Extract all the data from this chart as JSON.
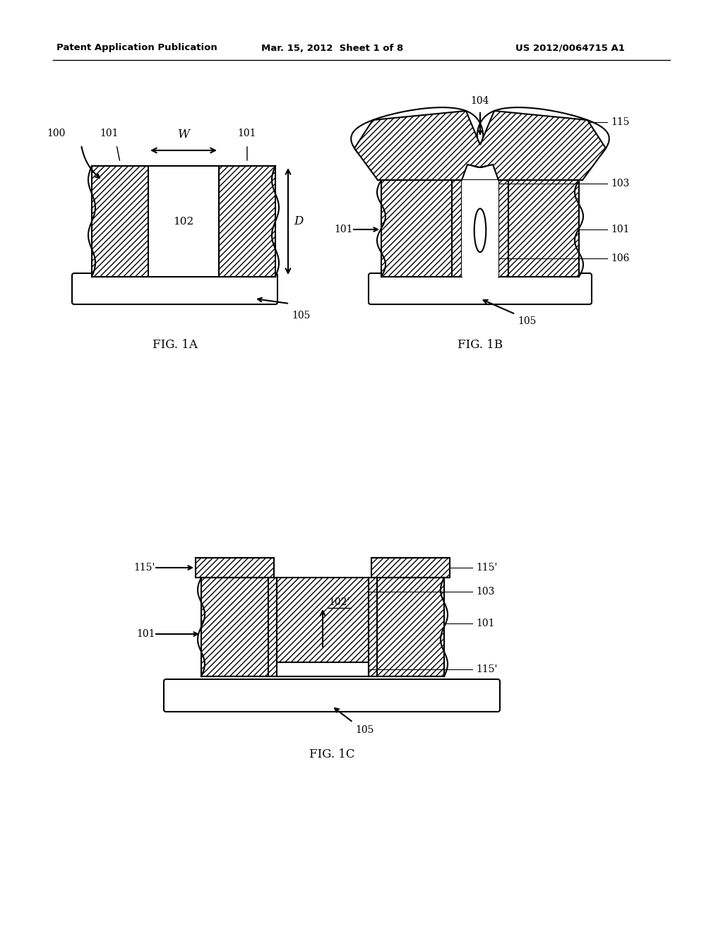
{
  "bg_color": "#ffffff",
  "header_left": "Patent Application Publication",
  "header_mid": "Mar. 15, 2012  Sheet 1 of 8",
  "header_right": "US 2012/0064715 A1",
  "fig1a_label": "FIG. 1A",
  "fig1b_label": "FIG. 1B",
  "fig1c_label": "FIG. 1C",
  "hatch_pattern": "////",
  "line_color": "#000000"
}
